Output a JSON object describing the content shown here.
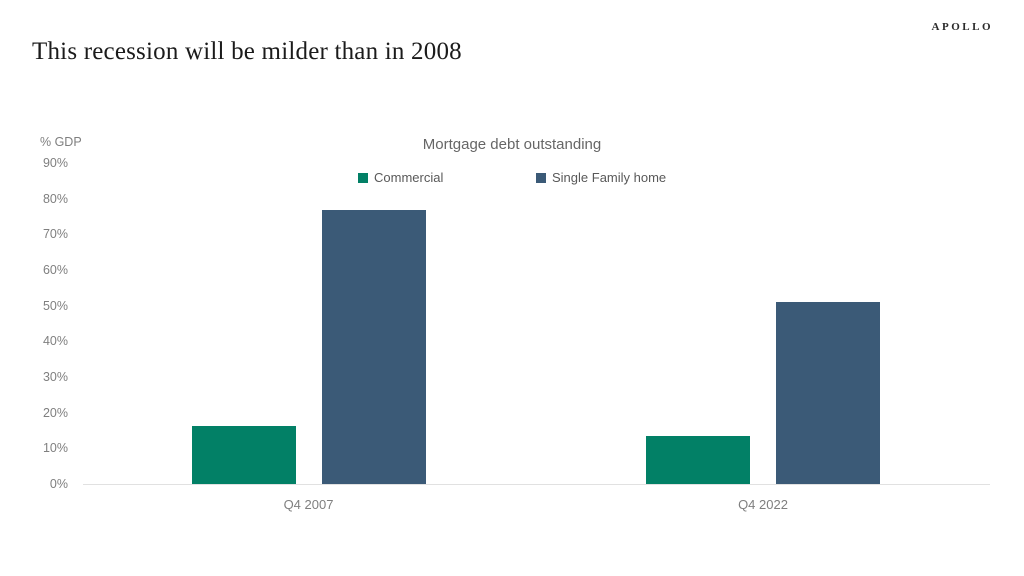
{
  "page": {
    "background": "#ffffff"
  },
  "header": {
    "title": "This recession will be milder than in 2008",
    "logo_text": "APOLLO"
  },
  "chart_data": {
    "type": "bar",
    "title": "Mortgage debt outstanding",
    "y_axis_unit_label": "% GDP",
    "categories": [
      "Q4 2007",
      "Q4 2022"
    ],
    "series": [
      {
        "name": "Commercial",
        "color": "#028066",
        "values": [
          16.2,
          13.4
        ]
      },
      {
        "name": "Single Family home",
        "color": "#3b5a77",
        "values": [
          76.9,
          51.0
        ]
      }
    ],
    "ylim": [
      0,
      90
    ],
    "yticks": [
      "0%",
      "10%",
      "20%",
      "30%",
      "40%",
      "50%",
      "60%",
      "70%",
      "80%",
      "90%"
    ],
    "grid": false,
    "legend_position": "top",
    "axis_line_color": "#e1e1e1",
    "text_colors": {
      "ticks": "#7f7f7f",
      "chart_title": "#666666",
      "legend": "#595959"
    }
  }
}
